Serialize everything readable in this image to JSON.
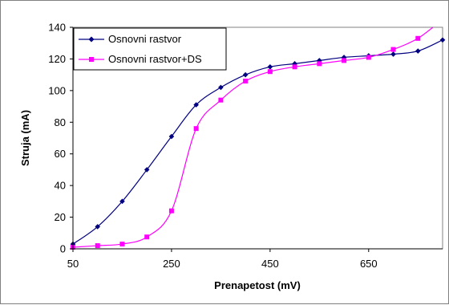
{
  "chart_data": {
    "type": "line",
    "xlabel": "Prenapetost (mV)",
    "ylabel": "Struja (mA)",
    "xlim": [
      50,
      800
    ],
    "ylim": [
      0,
      140
    ],
    "xticks": [
      50,
      250,
      450,
      650
    ],
    "yticks": [
      0,
      20,
      40,
      60,
      80,
      100,
      120,
      140
    ],
    "grid": false,
    "legend_position": "top-left",
    "series": [
      {
        "name": "Osnovni rastvor",
        "color": "#000080",
        "marker": "diamond",
        "x": [
          50,
          100,
          150,
          200,
          250,
          300,
          350,
          400,
          450,
          500,
          550,
          600,
          650,
          700,
          750,
          800
        ],
        "y": [
          3,
          14,
          30,
          50,
          71,
          91,
          102,
          110,
          115,
          117,
          119,
          121,
          122,
          123,
          125,
          132
        ]
      },
      {
        "name": "Osnovni rastvor+DS",
        "color": "#FF00FF",
        "marker": "square",
        "x": [
          50,
          100,
          150,
          200,
          250,
          300,
          350,
          400,
          450,
          500,
          550,
          600,
          650,
          700,
          750,
          800
        ],
        "y": [
          1,
          2,
          3,
          7.5,
          24,
          76,
          94,
          106,
          112,
          115,
          117,
          119,
          121,
          126,
          133,
          145
        ]
      }
    ]
  }
}
